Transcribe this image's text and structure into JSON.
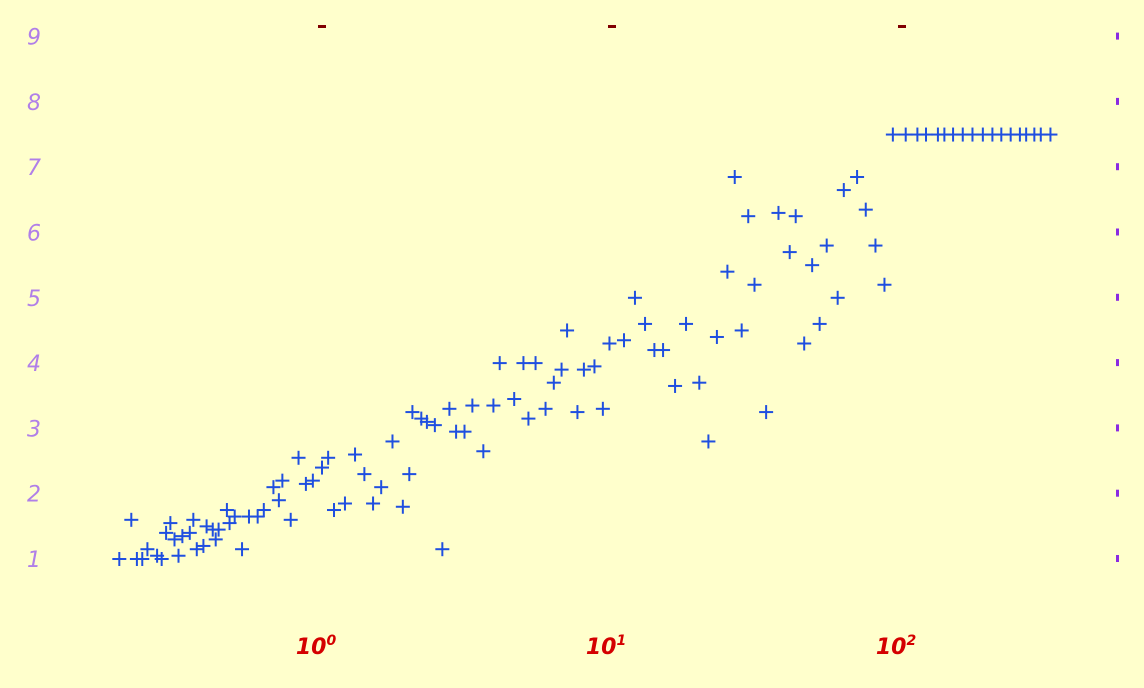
{
  "colors": {
    "background": "#ffffcc",
    "marker": "#1f4fe0",
    "x_tick_label": "#d40000",
    "y_tick_label": "#b07fe8",
    "top_tick": "#800000",
    "right_tick": "#8a2be2"
  },
  "chart_data": {
    "type": "scatter",
    "marker": "plus",
    "x_scale": "log",
    "xlim": [
      0.2,
      400
    ],
    "ylim": [
      0.6,
      9.3
    ],
    "grid": false,
    "title": "",
    "xlabel": "",
    "ylabel": "",
    "x_ticks": [
      {
        "value": 1,
        "base": "10",
        "exp": "0"
      },
      {
        "value": 10,
        "base": "10",
        "exp": "1"
      },
      {
        "value": 100,
        "base": "10",
        "exp": "2"
      }
    ],
    "y_ticks": [
      1,
      2,
      3,
      4,
      5,
      6,
      7,
      8,
      9
    ],
    "x": [
      0.2,
      0.22,
      0.23,
      0.24,
      0.25,
      0.27,
      0.28,
      0.29,
      0.3,
      0.31,
      0.32,
      0.33,
      0.35,
      0.36,
      0.37,
      0.39,
      0.4,
      0.42,
      0.43,
      0.44,
      0.47,
      0.48,
      0.5,
      0.53,
      0.56,
      0.6,
      0.63,
      0.68,
      0.71,
      0.73,
      0.78,
      0.83,
      0.88,
      0.93,
      1.0,
      1.05,
      1.1,
      1.2,
      1.3,
      1.4,
      1.5,
      1.6,
      1.75,
      1.9,
      2.0,
      2.05,
      2.2,
      2.3,
      2.45,
      2.6,
      2.75,
      2.9,
      3.1,
      3.3,
      3.6,
      3.9,
      4.1,
      4.6,
      4.95,
      5.15,
      5.45,
      5.9,
      6.3,
      6.7,
      7.0,
      7.6,
      8.0,
      8.7,
      9.3,
      9.8,
      11.0,
      12.0,
      13.0,
      14.0,
      15.0,
      16.5,
      18.0,
      20.0,
      21.5,
      23.0,
      25.0,
      26.5,
      28.0,
      29.5,
      31.0,
      34.0,
      37.5,
      41.0,
      43.0,
      46.0,
      49.0,
      52.0,
      55.0,
      60.0,
      63.0,
      70.0,
      75.0,
      81.0,
      87.0,
      93.0,
      103.0,
      113.0,
      121.0,
      133.0,
      140.0,
      150.0,
      162.0,
      175.0,
      190.0,
      205.0,
      220.0,
      237.0,
      255.0,
      268.0,
      286.0,
      301.0,
      325.0
    ],
    "y": [
      1.0,
      1.6,
      1.0,
      1.0,
      1.15,
      1.05,
      1.0,
      1.4,
      1.55,
      1.3,
      1.05,
      1.35,
      1.4,
      1.6,
      1.15,
      1.2,
      1.5,
      1.45,
      1.3,
      1.45,
      1.75,
      1.55,
      1.65,
      1.15,
      1.65,
      1.65,
      1.75,
      2.1,
      1.9,
      2.2,
      1.6,
      2.55,
      2.15,
      2.2,
      2.4,
      2.55,
      1.75,
      1.85,
      2.6,
      2.3,
      1.85,
      2.1,
      2.8,
      1.8,
      2.3,
      3.25,
      3.15,
      3.1,
      3.05,
      1.15,
      3.3,
      2.95,
      2.95,
      3.35,
      2.65,
      3.35,
      4.0,
      3.45,
      4.0,
      3.15,
      4.0,
      3.3,
      3.7,
      3.9,
      4.5,
      3.25,
      3.9,
      3.95,
      3.3,
      4.3,
      4.35,
      5.0,
      4.6,
      4.2,
      4.2,
      3.65,
      4.6,
      3.7,
      2.8,
      4.4,
      5.4,
      6.85,
      4.5,
      6.25,
      5.2,
      3.25,
      6.3,
      5.7,
      6.25,
      4.3,
      5.5,
      4.6,
      5.8,
      5.0,
      6.65,
      6.85,
      6.35,
      5.8,
      5.2,
      7.5,
      7.5,
      7.5,
      7.5,
      7.5,
      7.5,
      7.5,
      7.5,
      7.5,
      7.5,
      7.5,
      7.5,
      7.5,
      7.5,
      7.5,
      7.5,
      7.5,
      7.5
    ]
  }
}
